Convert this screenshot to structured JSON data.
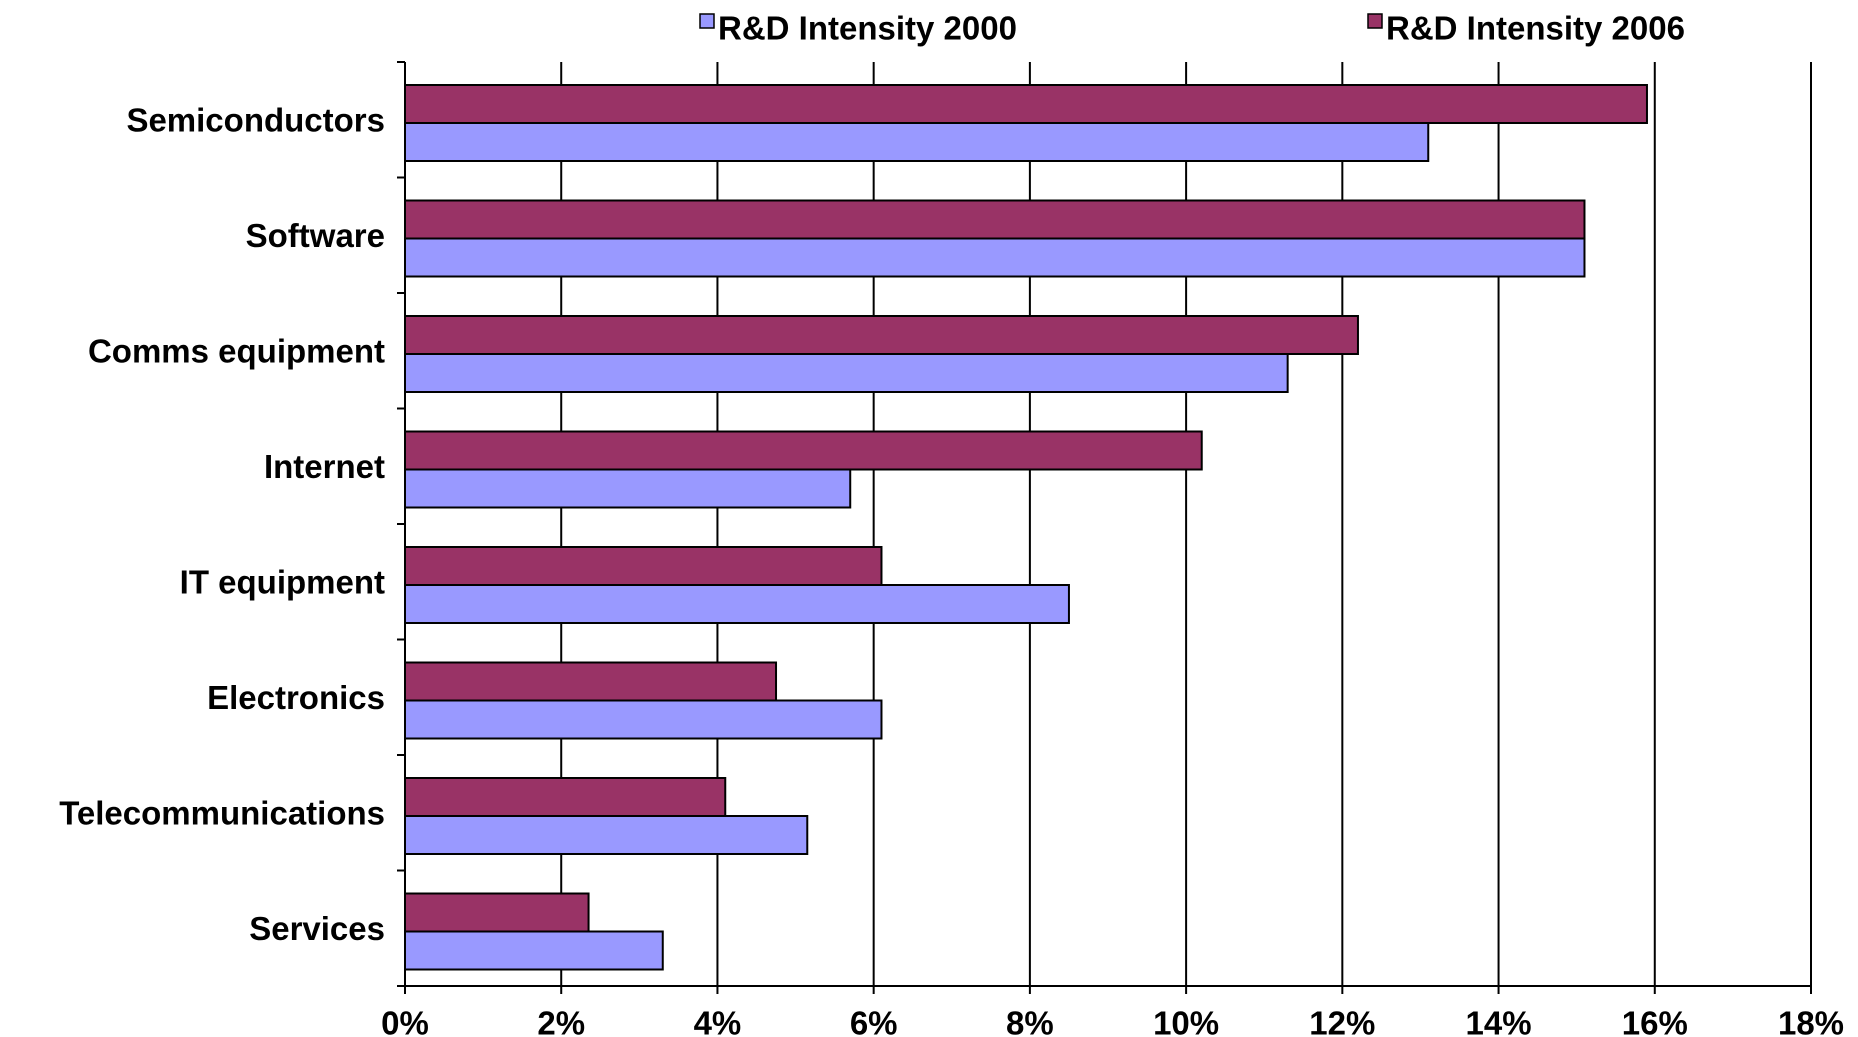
{
  "chart_data": {
    "type": "hbar",
    "categories": [
      "Semiconductors",
      "Software",
      "Comms equipment",
      "Internet",
      "IT equipment",
      "Electronics",
      "Telecommunications",
      "Services"
    ],
    "series": [
      {
        "name": "R&D Intensity 2000",
        "color": "#9999ff",
        "values": [
          13.1,
          15.1,
          11.3,
          5.7,
          8.5,
          6.1,
          5.15,
          3.3
        ]
      },
      {
        "name": "R&D Intensity 2006",
        "color": "#993366",
        "values": [
          15.9,
          15.1,
          12.2,
          10.2,
          6.1,
          4.75,
          4.1,
          2.35
        ]
      }
    ],
    "xlim": [
      0,
      18
    ],
    "xticks": [
      {
        "value": 0,
        "label": "0%"
      },
      {
        "value": 2,
        "label": "2%"
      },
      {
        "value": 4,
        "label": "4%"
      },
      {
        "value": 6,
        "label": "6%"
      },
      {
        "value": 8,
        "label": "8%"
      },
      {
        "value": 10,
        "label": "10%"
      },
      {
        "value": 12,
        "label": "12%"
      },
      {
        "value": 14,
        "label": "14%"
      },
      {
        "value": 16,
        "label": "16%"
      },
      {
        "value": 18,
        "label": "18%"
      }
    ],
    "grid": true,
    "legend": "top"
  }
}
